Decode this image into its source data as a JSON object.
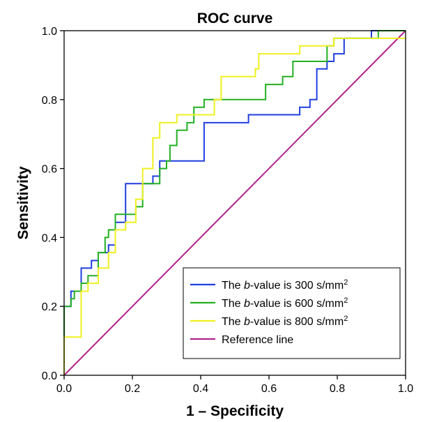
{
  "chart_data": {
    "type": "line",
    "title": "ROC curve",
    "xlabel": "1 – Specificity",
    "ylabel": "Sensitivity",
    "xlim": [
      0,
      1
    ],
    "ylim": [
      0,
      1
    ],
    "x_ticks": [
      "0.0",
      "0.2",
      "0.4",
      "0.6",
      "0.8",
      "1.0"
    ],
    "y_ticks": [
      "0.0",
      "0.2",
      "0.4",
      "0.6",
      "0.8",
      "1.0"
    ],
    "grid": false,
    "legend_position": "bottom-right",
    "series": [
      {
        "name": "The b-value is 300 s/mm2",
        "legend": {
          "pre": "The ",
          "italic": "b",
          "post": "-value is 300 s/mm",
          "sup": "2"
        },
        "color": "#1f3fe0",
        "points": [
          [
            0,
            0
          ],
          [
            0,
            0.2
          ],
          [
            0.02,
            0.2
          ],
          [
            0.02,
            0.244
          ],
          [
            0.05,
            0.244
          ],
          [
            0.05,
            0.311
          ],
          [
            0.08,
            0.311
          ],
          [
            0.08,
            0.333
          ],
          [
            0.1,
            0.333
          ],
          [
            0.1,
            0.356
          ],
          [
            0.13,
            0.356
          ],
          [
            0.13,
            0.378
          ],
          [
            0.15,
            0.378
          ],
          [
            0.15,
            0.444
          ],
          [
            0.18,
            0.444
          ],
          [
            0.18,
            0.556
          ],
          [
            0.26,
            0.556
          ],
          [
            0.26,
            0.578
          ],
          [
            0.28,
            0.578
          ],
          [
            0.28,
            0.622
          ],
          [
            0.41,
            0.622
          ],
          [
            0.41,
            0.733
          ],
          [
            0.54,
            0.733
          ],
          [
            0.54,
            0.756
          ],
          [
            0.69,
            0.756
          ],
          [
            0.69,
            0.778
          ],
          [
            0.72,
            0.778
          ],
          [
            0.72,
            0.8
          ],
          [
            0.74,
            0.8
          ],
          [
            0.74,
            0.889
          ],
          [
            0.77,
            0.889
          ],
          [
            0.77,
            0.911
          ],
          [
            0.79,
            0.911
          ],
          [
            0.79,
            0.933
          ],
          [
            0.82,
            0.933
          ],
          [
            0.82,
            0.978
          ],
          [
            0.9,
            0.978
          ],
          [
            0.9,
            1.0
          ],
          [
            1.0,
            1.0
          ]
        ]
      },
      {
        "name": "The b-value is 600 s/mm2",
        "legend": {
          "pre": "The ",
          "italic": "b",
          "post": "-value is 600 s/mm",
          "sup": "2"
        },
        "color": "#22b022",
        "points": [
          [
            0,
            0
          ],
          [
            0,
            0.2
          ],
          [
            0.02,
            0.2
          ],
          [
            0.02,
            0.222
          ],
          [
            0.03,
            0.222
          ],
          [
            0.03,
            0.244
          ],
          [
            0.05,
            0.244
          ],
          [
            0.05,
            0.267
          ],
          [
            0.07,
            0.267
          ],
          [
            0.07,
            0.289
          ],
          [
            0.1,
            0.289
          ],
          [
            0.1,
            0.356
          ],
          [
            0.12,
            0.356
          ],
          [
            0.12,
            0.4
          ],
          [
            0.13,
            0.4
          ],
          [
            0.13,
            0.422
          ],
          [
            0.15,
            0.422
          ],
          [
            0.15,
            0.467
          ],
          [
            0.21,
            0.467
          ],
          [
            0.21,
            0.489
          ],
          [
            0.23,
            0.489
          ],
          [
            0.23,
            0.556
          ],
          [
            0.28,
            0.556
          ],
          [
            0.28,
            0.6
          ],
          [
            0.3,
            0.6
          ],
          [
            0.3,
            0.622
          ],
          [
            0.31,
            0.622
          ],
          [
            0.31,
            0.667
          ],
          [
            0.33,
            0.667
          ],
          [
            0.33,
            0.711
          ],
          [
            0.36,
            0.711
          ],
          [
            0.36,
            0.733
          ],
          [
            0.38,
            0.733
          ],
          [
            0.38,
            0.778
          ],
          [
            0.41,
            0.778
          ],
          [
            0.41,
            0.8
          ],
          [
            0.59,
            0.8
          ],
          [
            0.59,
            0.844
          ],
          [
            0.64,
            0.844
          ],
          [
            0.64,
            0.867
          ],
          [
            0.67,
            0.867
          ],
          [
            0.67,
            0.911
          ],
          [
            0.77,
            0.911
          ],
          [
            0.77,
            0.956
          ],
          [
            0.79,
            0.956
          ],
          [
            0.79,
            0.978
          ],
          [
            0.92,
            0.978
          ],
          [
            0.92,
            1.0
          ],
          [
            1.0,
            1.0
          ]
        ]
      },
      {
        "name": "The b-value is 800 s/mm2",
        "legend": {
          "pre": "The ",
          "italic": "b",
          "post": "-value is 800 s/mm",
          "sup": "2"
        },
        "color": "#f0f020",
        "points": [
          [
            0,
            0
          ],
          [
            0,
            0.111
          ],
          [
            0.05,
            0.111
          ],
          [
            0.05,
            0.244
          ],
          [
            0.07,
            0.244
          ],
          [
            0.07,
            0.267
          ],
          [
            0.1,
            0.267
          ],
          [
            0.1,
            0.311
          ],
          [
            0.13,
            0.311
          ],
          [
            0.13,
            0.356
          ],
          [
            0.15,
            0.356
          ],
          [
            0.15,
            0.422
          ],
          [
            0.18,
            0.422
          ],
          [
            0.18,
            0.444
          ],
          [
            0.21,
            0.444
          ],
          [
            0.21,
            0.511
          ],
          [
            0.23,
            0.511
          ],
          [
            0.23,
            0.6
          ],
          [
            0.26,
            0.6
          ],
          [
            0.26,
            0.689
          ],
          [
            0.28,
            0.689
          ],
          [
            0.28,
            0.733
          ],
          [
            0.33,
            0.733
          ],
          [
            0.33,
            0.756
          ],
          [
            0.44,
            0.756
          ],
          [
            0.44,
            0.8
          ],
          [
            0.46,
            0.8
          ],
          [
            0.46,
            0.867
          ],
          [
            0.56,
            0.867
          ],
          [
            0.56,
            0.889
          ],
          [
            0.57,
            0.889
          ],
          [
            0.57,
            0.933
          ],
          [
            0.69,
            0.933
          ],
          [
            0.69,
            0.956
          ],
          [
            0.79,
            0.956
          ],
          [
            0.79,
            0.978
          ],
          [
            1.0,
            0.978
          ]
        ]
      },
      {
        "name": "Reference line",
        "legend": {
          "pre": "Reference line",
          "italic": "",
          "post": "",
          "sup": ""
        },
        "color": "#b0228a",
        "points": [
          [
            0,
            0
          ],
          [
            1,
            1
          ]
        ]
      }
    ]
  }
}
